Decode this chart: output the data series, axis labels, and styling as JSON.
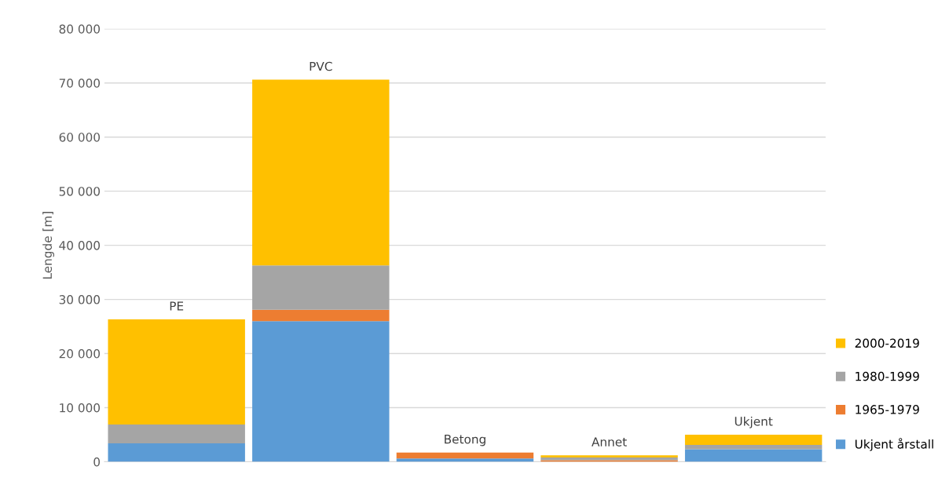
{
  "chart_data": {
    "type": "bar",
    "stacked": true,
    "ylabel": "Lengde [m]",
    "categories": [
      "PE",
      "PVC",
      "Betong",
      "Annet",
      "Ukjent"
    ],
    "series": [
      {
        "name": "Ukjent årstall",
        "color": "#5b9bd5",
        "values": [
          3400,
          26000,
          600,
          0,
          2300
        ]
      },
      {
        "name": "1965-1979",
        "color": "#ed7d31",
        "values": [
          0,
          2100,
          1100,
          300,
          0
        ]
      },
      {
        "name": "1980-1999",
        "color": "#a5a5a5",
        "values": [
          3500,
          8200,
          0,
          500,
          800
        ]
      },
      {
        "name": "2000-2019",
        "color": "#ffc000",
        "values": [
          19400,
          34300,
          0,
          400,
          1900
        ]
      }
    ],
    "ylim": [
      0,
      80000
    ],
    "yticks": [
      {
        "value": 0,
        "label": "0"
      },
      {
        "value": 10000,
        "label": "10 000"
      },
      {
        "value": 20000,
        "label": "20 000"
      },
      {
        "value": 30000,
        "label": "30 000"
      },
      {
        "value": 40000,
        "label": "40 000"
      },
      {
        "value": 50000,
        "label": "50 000"
      },
      {
        "value": 60000,
        "label": "60 000"
      },
      {
        "value": 70000,
        "label": "70 000"
      },
      {
        "value": 80000,
        "label": "80 000"
      }
    ],
    "grid": "y",
    "legend": "bottom right",
    "tick_labels": "y"
  }
}
